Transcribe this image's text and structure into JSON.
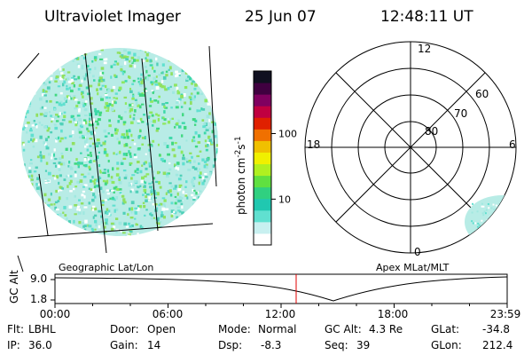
{
  "header": {
    "instrument": "Ultraviolet Imager",
    "date": "25 Jun 07",
    "time": "12:48:11 UT"
  },
  "colorbar": {
    "unit_label": "photon cm",
    "unit_exp1": "-2",
    "unit_s": "s",
    "unit_exp2": "-1",
    "ticks": [
      {
        "value": 100,
        "label": "100"
      },
      {
        "value": 10,
        "label": "10"
      }
    ],
    "range": [
      2,
      900
    ],
    "scale": "log",
    "colors": [
      "#ffffff",
      "#c8f0f0",
      "#60e0d0",
      "#20c8b0",
      "#30d080",
      "#60e040",
      "#b0f020",
      "#f0f000",
      "#f0c000",
      "#f07000",
      "#e02000",
      "#c00040",
      "#800060",
      "#400040",
      "#101020"
    ]
  },
  "geo_panel": {
    "label": "Geographic Lat/Lon"
  },
  "polar_panel": {
    "label": "Apex  MLat/MLT",
    "mlt_labels": {
      "top": "12",
      "left": "18",
      "right": "6",
      "bottom": "0"
    },
    "lat_labels": [
      "80",
      "70",
      "60"
    ]
  },
  "timeline": {
    "axis_label": "GC Alt",
    "y_ticks": [
      "9.0",
      "1.8"
    ],
    "x_ticks": [
      "00:00",
      "06:00",
      "12:00",
      "18:00",
      "23:59"
    ],
    "current_time_hours": 12.8
  },
  "info": {
    "filter": {
      "label": "Flt:",
      "value": "LBHL"
    },
    "ip": {
      "label": "IP:",
      "value": "36.0"
    },
    "door": {
      "label": "Door:",
      "value": "Open"
    },
    "gain": {
      "label": "Gain:",
      "value": "14"
    },
    "mode": {
      "label": "Mode:",
      "value": "Normal"
    },
    "dsp": {
      "label": "Dsp:",
      "value": "-8.3"
    },
    "gc_alt": {
      "label": "GC Alt:",
      "value": "4.3 Re"
    },
    "seq": {
      "label": "Seq:",
      "value": "39"
    },
    "glat": {
      "label": "GLat:",
      "value": "-34.8"
    },
    "glon": {
      "label": "GLon:",
      "value": "212.4"
    }
  }
}
